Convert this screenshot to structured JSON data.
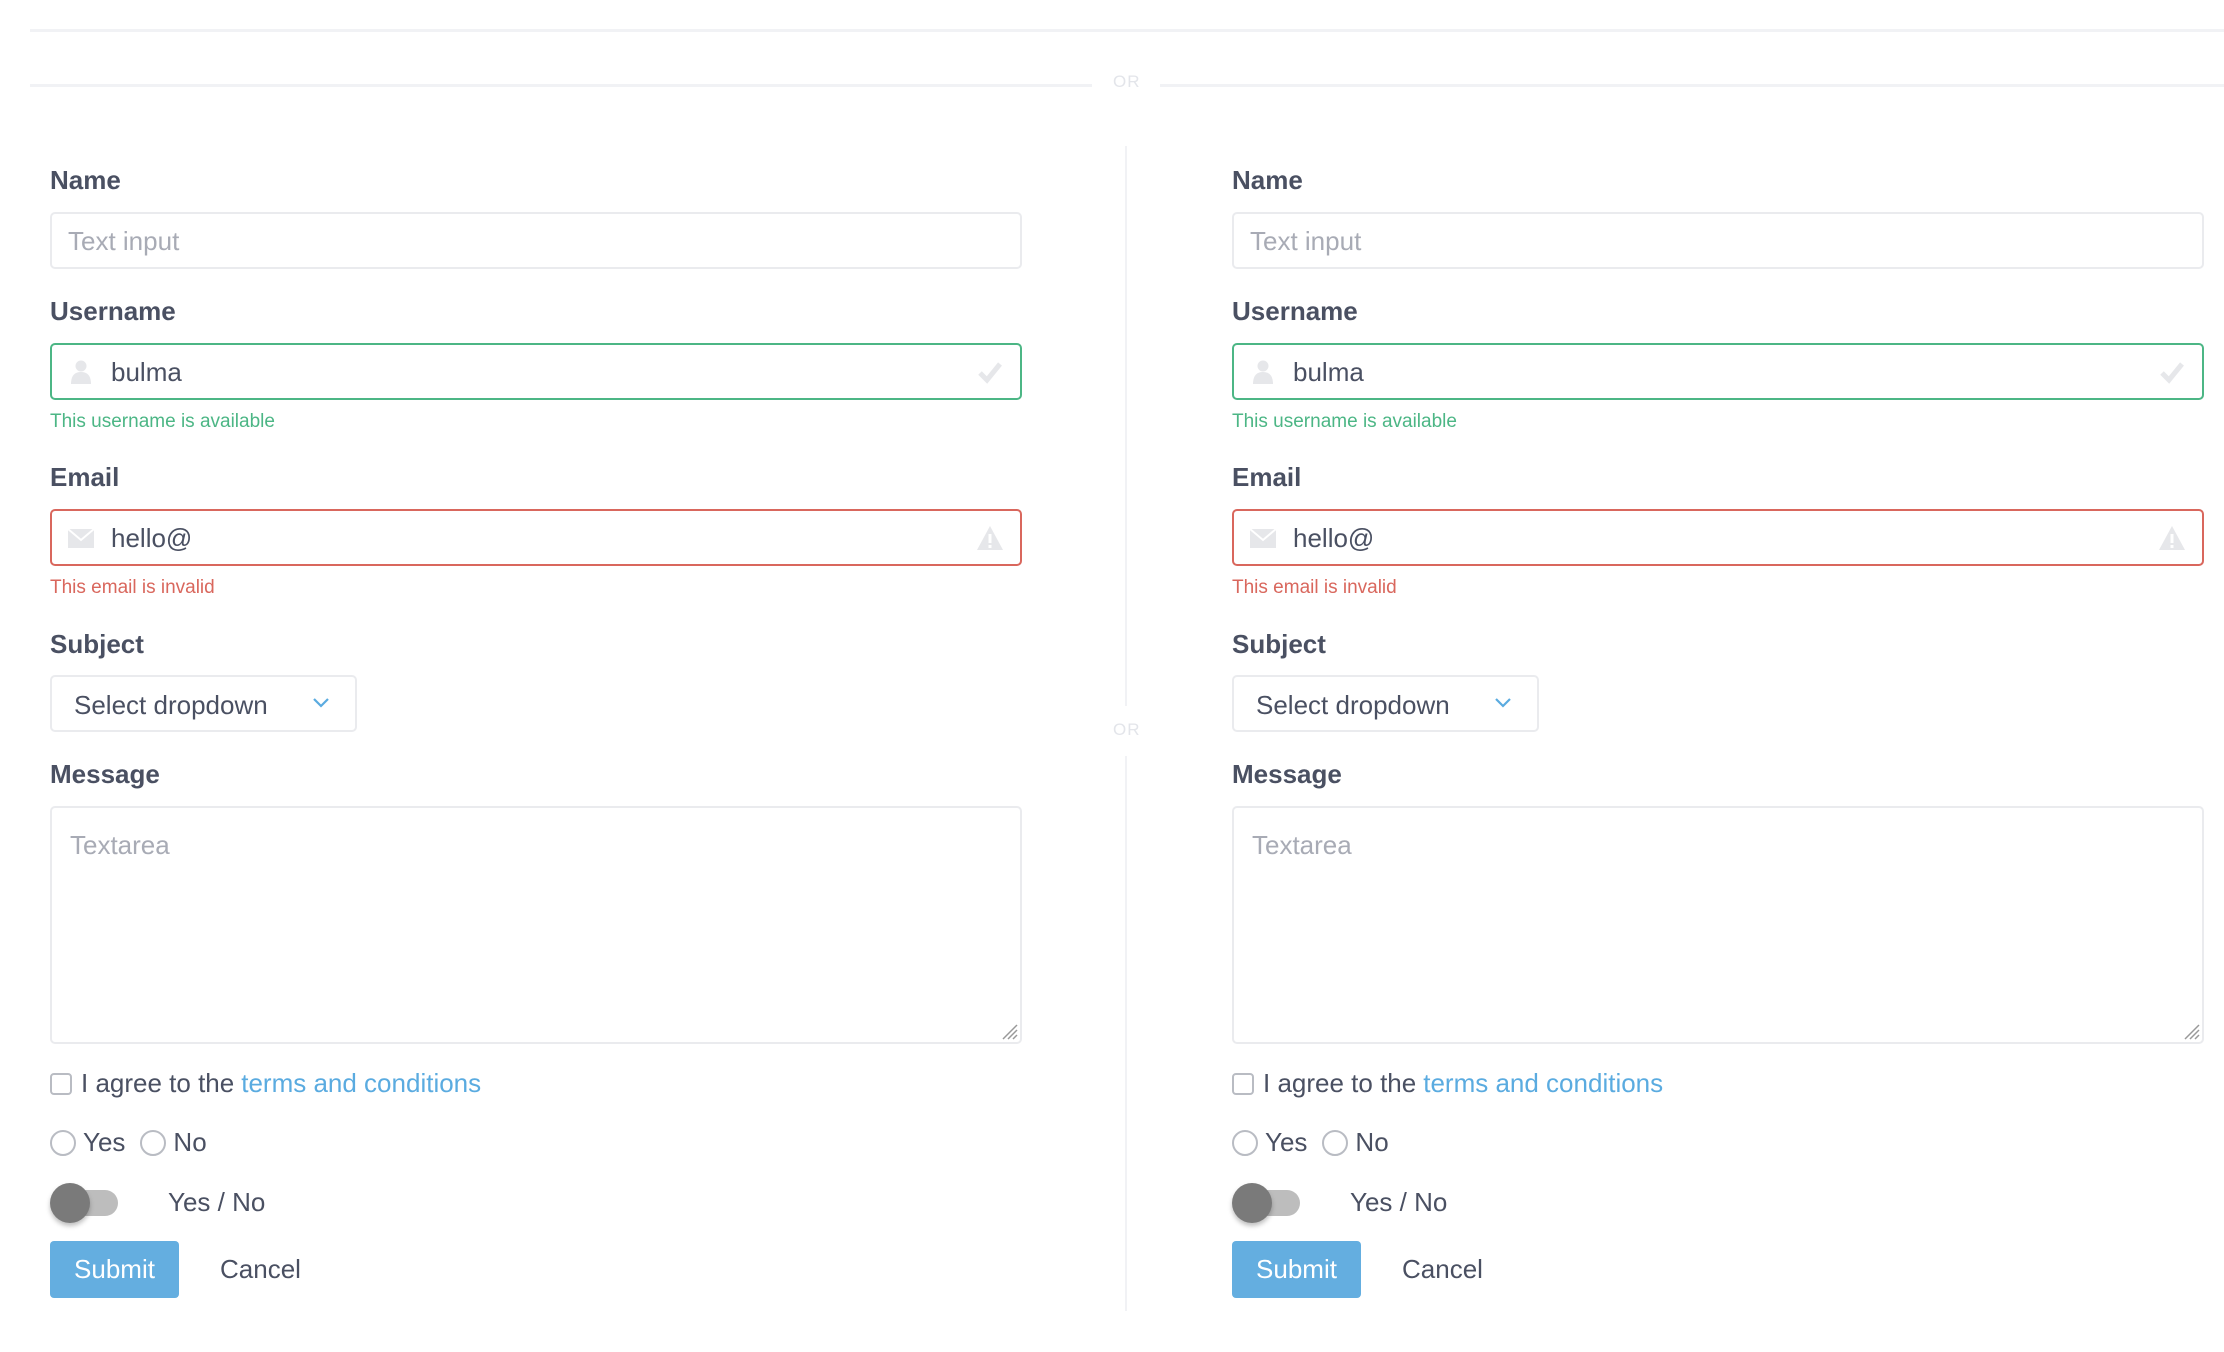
{
  "divider_label": "OR",
  "forms": [
    {
      "name_label": "Name",
      "name_placeholder": "Text input",
      "username_label": "Username",
      "username_value": "bulma",
      "username_help": "This username is available",
      "email_label": "Email",
      "email_value": "hello@",
      "email_help": "This email is invalid",
      "subject_label": "Subject",
      "subject_value": "Select dropdown",
      "message_label": "Message",
      "message_placeholder": "Textarea",
      "agree_text": "I agree to the",
      "agree_link": "terms and conditions",
      "radio_yes": "Yes",
      "radio_no": "No",
      "toggle_label": "Yes / No",
      "toggle_on": false,
      "submit_label": "Submit",
      "cancel_label": "Cancel"
    },
    {
      "name_label": "Name",
      "name_placeholder": "Text input",
      "username_label": "Username",
      "username_value": "bulma",
      "username_help": "This username is available",
      "email_label": "Email",
      "email_value": "hello@",
      "email_help": "This email is invalid",
      "subject_label": "Subject",
      "subject_value": "Select dropdown",
      "message_label": "Message",
      "message_placeholder": "Textarea",
      "agree_text": "I agree to the",
      "agree_link": "terms and conditions",
      "radio_yes": "Yes",
      "radio_no": "No",
      "toggle_label": "Yes / No",
      "toggle_on": false,
      "submit_label": "Submit",
      "cancel_label": "Cancel"
    }
  ],
  "colors": {
    "success": "#4cb685",
    "danger": "#d9675d",
    "primary": "#64aee0",
    "link": "#5aabe0"
  }
}
